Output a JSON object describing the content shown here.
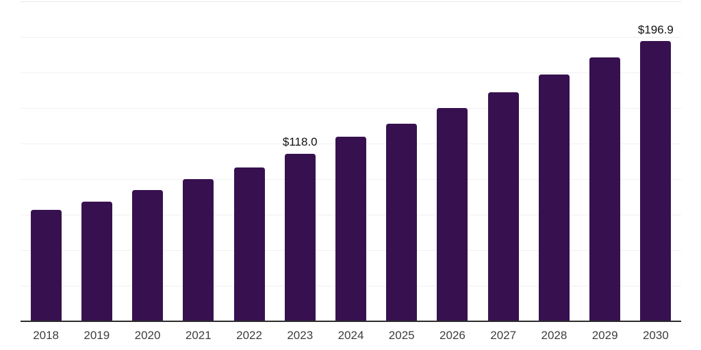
{
  "chart_data": {
    "type": "bar",
    "categories": [
      "2018",
      "2019",
      "2020",
      "2021",
      "2022",
      "2023",
      "2024",
      "2025",
      "2026",
      "2027",
      "2028",
      "2029",
      "2030"
    ],
    "values": [
      78.4,
      84.3,
      92.3,
      99.8,
      108.1,
      118.0,
      129.9,
      139.1,
      149.8,
      161.0,
      173.5,
      185.4,
      196.9
    ],
    "data_labels": {
      "2023": "$118.0",
      "2030": "$196.9"
    },
    "ylim": [
      0,
      225
    ],
    "gridline_step": 25,
    "grid": "horizontal",
    "legend": "none",
    "y_axis_labels": "none",
    "bar_color": "#37114F",
    "axis_line_color": "#2b2b2b",
    "gridline_color": "#f0f0f0",
    "tick_label_color": "#3d3d3d",
    "value_label_color": "#121212",
    "background_color": "#ffffff"
  }
}
